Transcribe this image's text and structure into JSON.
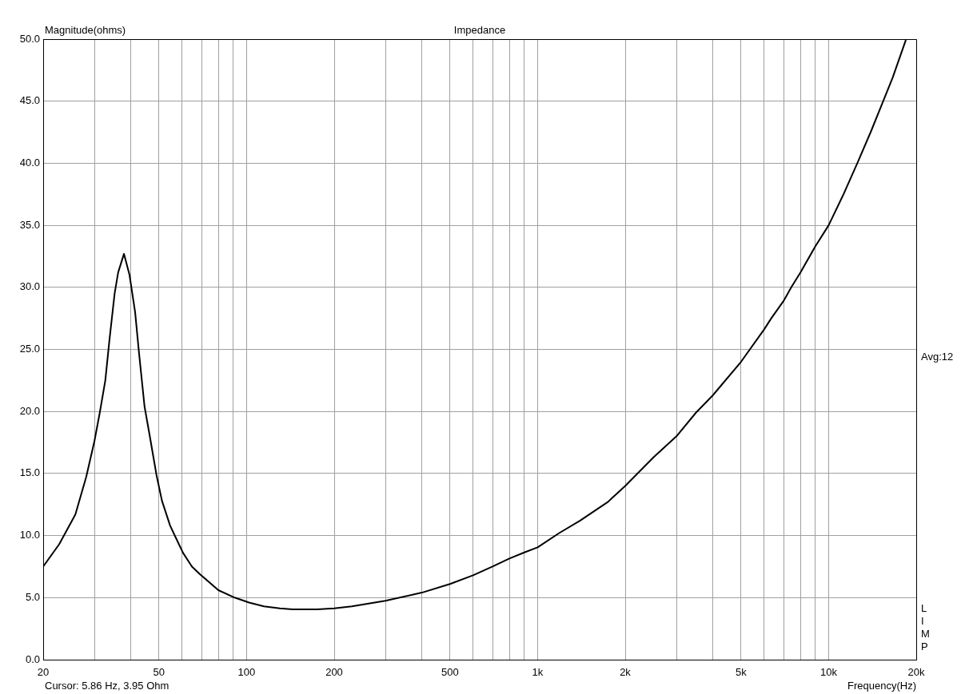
{
  "chart_data": {
    "type": "line",
    "title": "Impedance",
    "ylabel": "Magnitude(ohms)",
    "xlabel": "Frequency(Hz)",
    "annotations": [
      "Avg:12",
      "LIMP",
      "Cursor: 5.86 Hz, 3.95 Ohm"
    ],
    "x": [
      20,
      22.7,
      25.8,
      28.1,
      30,
      31.3,
      32.7,
      33.8,
      35.2,
      36.2,
      37.9,
      39.6,
      41.4,
      42.7,
      44.6,
      46.5,
      49,
      51.2,
      54.6,
      57.2,
      60.5,
      64.9,
      69,
      80,
      91,
      102,
      114.7,
      130,
      144,
      175,
      200,
      230,
      300,
      400,
      500,
      600,
      700,
      800,
      900,
      1000,
      1186,
      1400,
      1742,
      2000,
      2500,
      3000,
      3500,
      4000,
      5000,
      6000,
      6350,
      7000,
      7440,
      8000,
      9000,
      10000,
      11200,
      12600,
      14000,
      15400,
      16600,
      18400
    ],
    "values": [
      7.5,
      9.3,
      11.7,
      14.7,
      17.6,
      19.9,
      22.5,
      25.8,
      29.5,
      31.2,
      32.7,
      31.0,
      28.0,
      24.7,
      20.4,
      18.0,
      14.9,
      12.8,
      10.8,
      9.8,
      8.6,
      7.5,
      6.9,
      5.6,
      5.0,
      4.6,
      4.3,
      4.14,
      4.05,
      4.05,
      4.14,
      4.3,
      4.74,
      5.4,
      6.1,
      6.8,
      7.5,
      8.15,
      8.64,
      9.05,
      10.2,
      11.2,
      12.7,
      14.0,
      16.3,
      18.0,
      19.9,
      21.3,
      24.0,
      26.6,
      27.5,
      28.9,
      30.0,
      31.2,
      33.3,
      35.0,
      37.4,
      40.1,
      42.6,
      45.0,
      46.9,
      49.9
    ],
    "color": "#000000",
    "xlim": [
      20,
      20000
    ],
    "xticks": [
      20,
      {
        "value": 30,
        "label": null
      },
      {
        "value": 40,
        "label": null
      },
      50,
      {
        "value": 60,
        "label": null
      },
      {
        "value": 70,
        "label": null
      },
      {
        "value": 80,
        "label": null
      },
      {
        "value": 90,
        "label": null
      },
      100,
      200,
      {
        "value": 300,
        "label": null
      },
      {
        "value": 400,
        "label": null
      },
      500,
      {
        "value": 600,
        "label": null
      },
      {
        "value": 700,
        "label": null
      },
      {
        "value": 800,
        "label": null
      },
      {
        "value": 900,
        "label": null
      },
      {
        "value": 1000,
        "label": "1k"
      },
      {
        "value": 2000,
        "label": "2k"
      },
      {
        "value": 3000,
        "label": null
      },
      {
        "value": 4000,
        "label": null
      },
      {
        "value": 5000,
        "label": "5k"
      },
      {
        "value": 6000,
        "label": null
      },
      {
        "value": 7000,
        "label": null
      },
      {
        "value": 8000,
        "label": null
      },
      {
        "value": 9000,
        "label": null
      },
      {
        "value": 10000,
        "label": "10k"
      },
      {
        "value": 20000,
        "label": "20k"
      }
    ],
    "ylim": [
      0,
      50
    ],
    "yticks": [
      {
        "value": 0,
        "label": "0.0"
      },
      {
        "value": 5,
        "label": "5.0"
      },
      {
        "value": 10,
        "label": "10.0"
      },
      {
        "value": 15,
        "label": "15.0"
      },
      {
        "value": 20,
        "label": "20.0"
      },
      {
        "value": 25,
        "label": "25.0"
      },
      {
        "value": 30,
        "label": "30.0"
      },
      {
        "value": 35,
        "label": "35.0"
      },
      {
        "value": 40,
        "label": "40.0"
      },
      {
        "value": 45,
        "label": "45.0"
      },
      {
        "value": 50,
        "label": "50.0"
      }
    ],
    "log": "x",
    "grid": true,
    "marker": "none",
    "line_style": "solid"
  }
}
